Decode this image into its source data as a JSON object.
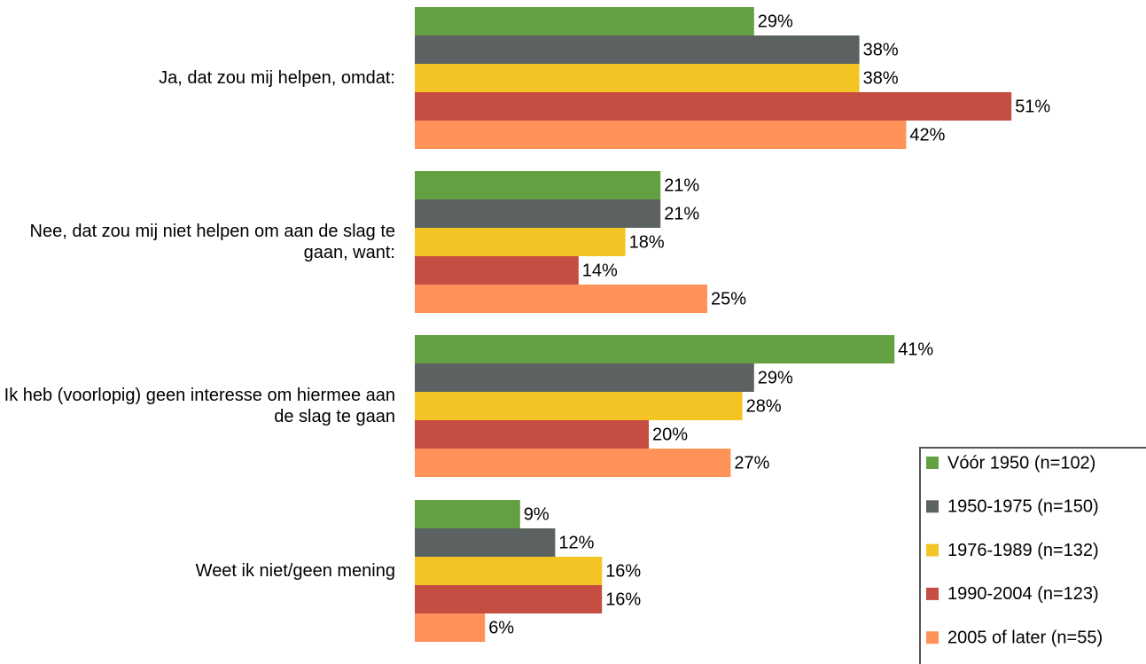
{
  "chart_data": {
    "type": "bar",
    "orientation": "horizontal",
    "categories": [
      "Ja, dat zou mij helpen, omdat:",
      "Nee, dat zou mij niet helpen om aan de slag te gaan, want:",
      "Ik heb (voorlopig) geen interesse om hiermee aan de slag te gaan",
      "Weet ik niet/geen mening"
    ],
    "series": [
      {
        "name": "Vóór 1950 (n=102)",
        "color": "#62a041",
        "values": [
          29,
          21,
          41,
          9
        ],
        "value_labels": [
          "29%",
          "21%",
          "41%",
          "9%"
        ]
      },
      {
        "name": "1950-1975 (n=150)",
        "color": "#5c6262",
        "values": [
          38,
          21,
          29,
          12
        ],
        "value_labels": [
          "38%",
          "21%",
          "29%",
          "12%"
        ]
      },
      {
        "name": "1976-1989 (n=132)",
        "color": "#f4c424",
        "values": [
          38,
          18,
          28,
          16
        ],
        "value_labels": [
          "38%",
          "18%",
          "28%",
          "16%"
        ]
      },
      {
        "name": "1990-2004 (n=123)",
        "color": "#c44e41",
        "values": [
          51,
          14,
          20,
          16
        ],
        "value_labels": [
          "51%",
          "14%",
          "20%",
          "16%"
        ]
      },
      {
        "name": "2005 of later (n=55)",
        "color": "#fe9259",
        "values": [
          42,
          25,
          27,
          6
        ],
        "value_labels": [
          "42%",
          "25%",
          "27%",
          "6%"
        ]
      }
    ],
    "xlim": [
      0,
      60
    ],
    "legend": "lower right"
  }
}
